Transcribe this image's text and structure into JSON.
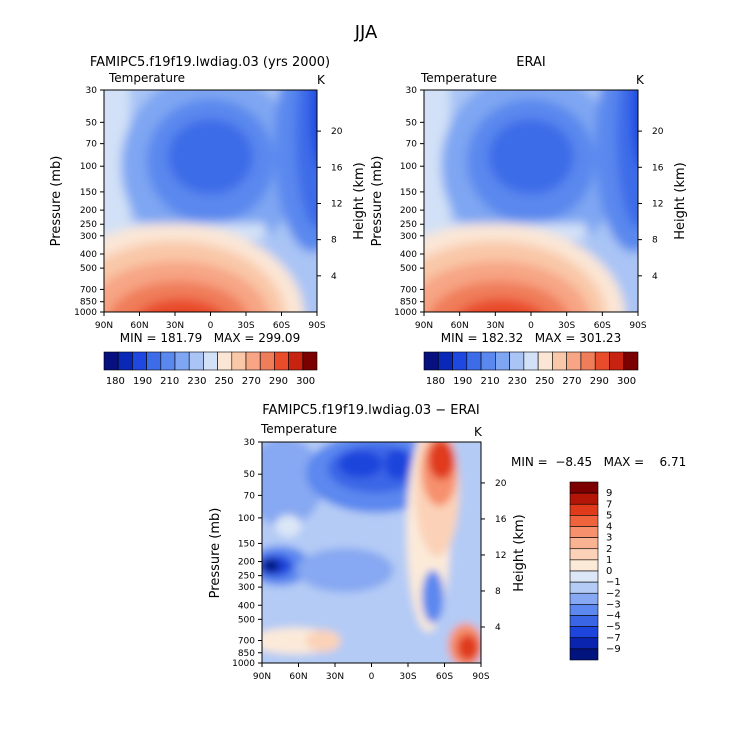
{
  "figure": {
    "title": "JJA"
  },
  "colors": {
    "levels_abs": [
      180,
      190,
      200,
      210,
      220,
      230,
      240,
      250,
      260,
      270,
      280,
      290,
      300
    ],
    "palette_abs": [
      "#06107e",
      "#0a28b8",
      "#1f48e0",
      "#3c6ce8",
      "#5a88ee",
      "#7ea6f2",
      "#a9c4f5",
      "#d2e1f7",
      "#fbe6d5",
      "#f9c8a8",
      "#f7a585",
      "#f07d5a",
      "#e84c2a",
      "#c82210",
      "#7b0000"
    ],
    "levels_diff": [
      -9,
      -7,
      -5,
      -4,
      -3,
      -2,
      -1,
      0,
      1,
      2,
      3,
      4,
      5,
      7,
      9
    ],
    "palette_diff": [
      "#02137d",
      "#0b24b0",
      "#1d44dc",
      "#3a66e6",
      "#5c88ef",
      "#87a8f2",
      "#b4cbf5",
      "#dbe6f6",
      "#fcead9",
      "#fbd2b7",
      "#f9b393",
      "#f6906d",
      "#f0643d",
      "#e03a1c",
      "#b31607",
      "#7d0000"
    ]
  },
  "chart_data": [
    {
      "type": "heatmap",
      "title": "FAMIPC5.f19f19.lwdiag.03 (yrs 2000)",
      "variable": "Temperature",
      "units": "K",
      "ylabel": "Pressure (mb)",
      "y2label": "Height (km)",
      "x_ticks": [
        "90N",
        "60N",
        "30N",
        "0",
        "30S",
        "60S",
        "90S"
      ],
      "y_ticks": [
        30,
        50,
        70,
        100,
        150,
        200,
        250,
        300,
        400,
        500,
        700,
        850,
        1000
      ],
      "y2_ticks": [
        20,
        16,
        12,
        8,
        4
      ],
      "stats": "MIN = 181.79   MAX = 299.09",
      "min": 181.79,
      "max": 299.09,
      "colorbar_labels": [
        "180",
        "190",
        "210",
        "230",
        "250",
        "270",
        "290",
        "300"
      ],
      "grid": false
    },
    {
      "type": "heatmap",
      "title": "ERAI",
      "variable": "Temperature",
      "units": "K",
      "ylabel": "Pressure (mb)",
      "y2label": "Height (km)",
      "x_ticks": [
        "90N",
        "60N",
        "30N",
        "0",
        "30S",
        "60S",
        "90S"
      ],
      "y_ticks": [
        30,
        50,
        70,
        100,
        150,
        200,
        250,
        300,
        400,
        500,
        700,
        850,
        1000
      ],
      "y2_ticks": [
        20,
        16,
        12,
        8,
        4
      ],
      "stats": "MIN = 182.32   MAX = 301.23",
      "min": 182.32,
      "max": 301.23,
      "colorbar_labels": [
        "180",
        "190",
        "210",
        "230",
        "250",
        "270",
        "290",
        "300"
      ],
      "grid": false
    },
    {
      "type": "heatmap",
      "title": "FAMIPC5.f19f19.lwdiag.03 − ERAI",
      "variable": "Temperature",
      "units": "K",
      "ylabel": "Pressure (mb)",
      "y2label": "Height (km)",
      "x_ticks": [
        "90N",
        "60N",
        "30N",
        "0",
        "30S",
        "60S",
        "90S"
      ],
      "y_ticks": [
        30,
        50,
        70,
        100,
        150,
        200,
        250,
        300,
        400,
        500,
        700,
        850,
        1000
      ],
      "y2_ticks": [
        20,
        16,
        12,
        8,
        4
      ],
      "stats": "MIN =  −8.45   MAX =    6.71",
      "min": -8.45,
      "max": 6.71,
      "colorbar_labels": [
        "9",
        "7",
        "5",
        "4",
        "3",
        "2",
        "1",
        "0",
        "−1",
        "−2",
        "−3",
        "−4",
        "−5",
        "−7",
        "−9"
      ],
      "grid": false
    }
  ]
}
